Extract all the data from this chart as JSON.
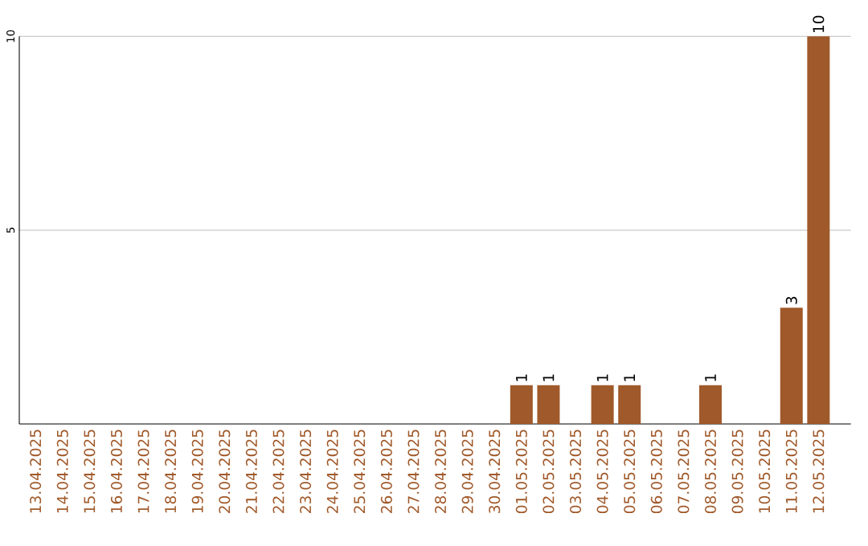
{
  "chart_data": {
    "type": "bar",
    "categories": [
      "13.04.2025",
      "14.04.2025",
      "15.04.2025",
      "16.04.2025",
      "17.04.2025",
      "18.04.2025",
      "19.04.2025",
      "20.04.2025",
      "21.04.2025",
      "22.04.2025",
      "23.04.2025",
      "24.04.2025",
      "25.04.2025",
      "26.04.2025",
      "27.04.2025",
      "28.04.2025",
      "29.04.2025",
      "30.04.2025",
      "01.05.2025",
      "02.05.2025",
      "03.05.2025",
      "04.05.2025",
      "05.05.2025",
      "06.05.2025",
      "07.05.2025",
      "08.05.2025",
      "09.05.2025",
      "10.05.2025",
      "11.05.2025",
      "12.05.2025"
    ],
    "values": [
      0,
      0,
      0,
      0,
      0,
      0,
      0,
      0,
      0,
      0,
      0,
      0,
      0,
      0,
      0,
      0,
      0,
      0,
      1,
      1,
      0,
      1,
      1,
      0,
      0,
      1,
      0,
      0,
      3,
      10
    ],
    "value_labels": [
      null,
      null,
      null,
      null,
      null,
      null,
      null,
      null,
      null,
      null,
      null,
      null,
      null,
      null,
      null,
      null,
      null,
      null,
      "1",
      "1",
      null,
      "1",
      "1",
      null,
      null,
      "1",
      null,
      null,
      "3",
      "10"
    ],
    "color": "#a0592a",
    "ylim": [
      0,
      10
    ],
    "yticks": [
      5,
      10
    ],
    "grid": "y"
  }
}
